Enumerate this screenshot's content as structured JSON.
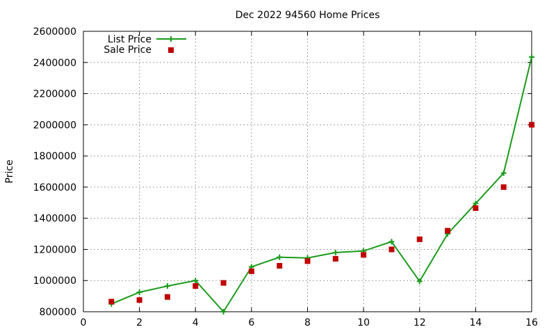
{
  "chart_data": {
    "type": "line",
    "title": "Dec 2022 94560 Home Prices",
    "xlabel": "",
    "ylabel": "Price",
    "xlim": [
      0,
      16
    ],
    "ylim": [
      800000,
      2600000
    ],
    "x_ticks": [
      0,
      2,
      4,
      6,
      8,
      10,
      12,
      14,
      16
    ],
    "y_ticks": [
      800000,
      1000000,
      1200000,
      1400000,
      1600000,
      1800000,
      2000000,
      2200000,
      2400000,
      2600000
    ],
    "grid": true,
    "legend_position": "top-left",
    "series": [
      {
        "name": "List Price",
        "style": "line-with-plus-markers",
        "color": "#1a9a1a",
        "x": [
          1,
          2,
          3,
          4,
          5,
          6,
          7,
          8,
          9,
          10,
          11,
          12,
          13,
          14,
          15,
          16
        ],
        "y": [
          850000,
          925000,
          965000,
          1000000,
          800000,
          1088000,
          1150000,
          1145000,
          1180000,
          1190000,
          1250000,
          995000,
          1300000,
          1495000,
          1690000,
          2435000
        ]
      },
      {
        "name": "Sale Price",
        "style": "square-points",
        "color": "#c00000",
        "x": [
          1,
          2,
          3,
          4,
          5,
          6,
          7,
          8,
          9,
          10,
          11,
          12,
          13,
          14,
          15,
          16
        ],
        "y": [
          865000,
          875000,
          895000,
          965000,
          985000,
          1060000,
          1095000,
          1125000,
          1140000,
          1165000,
          1200000,
          1265000,
          1320000,
          1465000,
          1600000,
          2000000
        ]
      }
    ]
  }
}
